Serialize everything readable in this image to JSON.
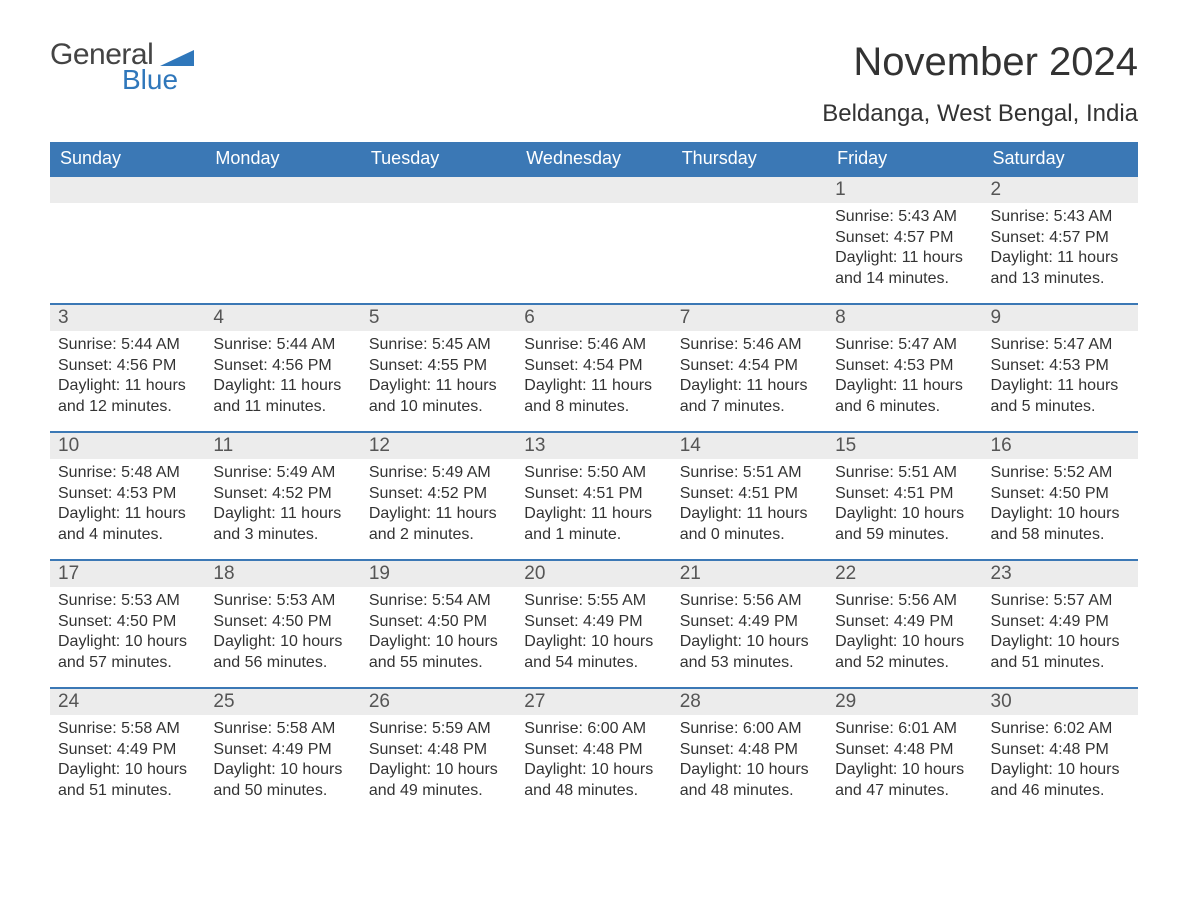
{
  "brand": {
    "general": "General",
    "blue": "Blue"
  },
  "title": "November 2024",
  "location": "Beldanga, West Bengal, India",
  "colors": {
    "header_bg": "#3b78b5",
    "header_text": "#ffffff",
    "cell_border": "#3b78b5",
    "daynum_bg": "#ececec",
    "daynum_text": "#555555",
    "body_text": "#333333",
    "brand_blue": "#2f77bb",
    "page_bg": "#ffffff"
  },
  "weekdays": [
    "Sunday",
    "Monday",
    "Tuesday",
    "Wednesday",
    "Thursday",
    "Friday",
    "Saturday"
  ],
  "first_weekday_index": 5,
  "days": [
    {
      "n": 1,
      "sunrise": "5:43 AM",
      "sunset": "4:57 PM",
      "daylight": "11 hours and 14 minutes."
    },
    {
      "n": 2,
      "sunrise": "5:43 AM",
      "sunset": "4:57 PM",
      "daylight": "11 hours and 13 minutes."
    },
    {
      "n": 3,
      "sunrise": "5:44 AM",
      "sunset": "4:56 PM",
      "daylight": "11 hours and 12 minutes."
    },
    {
      "n": 4,
      "sunrise": "5:44 AM",
      "sunset": "4:56 PM",
      "daylight": "11 hours and 11 minutes."
    },
    {
      "n": 5,
      "sunrise": "5:45 AM",
      "sunset": "4:55 PM",
      "daylight": "11 hours and 10 minutes."
    },
    {
      "n": 6,
      "sunrise": "5:46 AM",
      "sunset": "4:54 PM",
      "daylight": "11 hours and 8 minutes."
    },
    {
      "n": 7,
      "sunrise": "5:46 AM",
      "sunset": "4:54 PM",
      "daylight": "11 hours and 7 minutes."
    },
    {
      "n": 8,
      "sunrise": "5:47 AM",
      "sunset": "4:53 PM",
      "daylight": "11 hours and 6 minutes."
    },
    {
      "n": 9,
      "sunrise": "5:47 AM",
      "sunset": "4:53 PM",
      "daylight": "11 hours and 5 minutes."
    },
    {
      "n": 10,
      "sunrise": "5:48 AM",
      "sunset": "4:53 PM",
      "daylight": "11 hours and 4 minutes."
    },
    {
      "n": 11,
      "sunrise": "5:49 AM",
      "sunset": "4:52 PM",
      "daylight": "11 hours and 3 minutes."
    },
    {
      "n": 12,
      "sunrise": "5:49 AM",
      "sunset": "4:52 PM",
      "daylight": "11 hours and 2 minutes."
    },
    {
      "n": 13,
      "sunrise": "5:50 AM",
      "sunset": "4:51 PM",
      "daylight": "11 hours and 1 minute."
    },
    {
      "n": 14,
      "sunrise": "5:51 AM",
      "sunset": "4:51 PM",
      "daylight": "11 hours and 0 minutes."
    },
    {
      "n": 15,
      "sunrise": "5:51 AM",
      "sunset": "4:51 PM",
      "daylight": "10 hours and 59 minutes."
    },
    {
      "n": 16,
      "sunrise": "5:52 AM",
      "sunset": "4:50 PM",
      "daylight": "10 hours and 58 minutes."
    },
    {
      "n": 17,
      "sunrise": "5:53 AM",
      "sunset": "4:50 PM",
      "daylight": "10 hours and 57 minutes."
    },
    {
      "n": 18,
      "sunrise": "5:53 AM",
      "sunset": "4:50 PM",
      "daylight": "10 hours and 56 minutes."
    },
    {
      "n": 19,
      "sunrise": "5:54 AM",
      "sunset": "4:50 PM",
      "daylight": "10 hours and 55 minutes."
    },
    {
      "n": 20,
      "sunrise": "5:55 AM",
      "sunset": "4:49 PM",
      "daylight": "10 hours and 54 minutes."
    },
    {
      "n": 21,
      "sunrise": "5:56 AM",
      "sunset": "4:49 PM",
      "daylight": "10 hours and 53 minutes."
    },
    {
      "n": 22,
      "sunrise": "5:56 AM",
      "sunset": "4:49 PM",
      "daylight": "10 hours and 52 minutes."
    },
    {
      "n": 23,
      "sunrise": "5:57 AM",
      "sunset": "4:49 PM",
      "daylight": "10 hours and 51 minutes."
    },
    {
      "n": 24,
      "sunrise": "5:58 AM",
      "sunset": "4:49 PM",
      "daylight": "10 hours and 51 minutes."
    },
    {
      "n": 25,
      "sunrise": "5:58 AM",
      "sunset": "4:49 PM",
      "daylight": "10 hours and 50 minutes."
    },
    {
      "n": 26,
      "sunrise": "5:59 AM",
      "sunset": "4:48 PM",
      "daylight": "10 hours and 49 minutes."
    },
    {
      "n": 27,
      "sunrise": "6:00 AM",
      "sunset": "4:48 PM",
      "daylight": "10 hours and 48 minutes."
    },
    {
      "n": 28,
      "sunrise": "6:00 AM",
      "sunset": "4:48 PM",
      "daylight": "10 hours and 48 minutes."
    },
    {
      "n": 29,
      "sunrise": "6:01 AM",
      "sunset": "4:48 PM",
      "daylight": "10 hours and 47 minutes."
    },
    {
      "n": 30,
      "sunrise": "6:02 AM",
      "sunset": "4:48 PM",
      "daylight": "10 hours and 46 minutes."
    }
  ],
  "labels": {
    "sunrise": "Sunrise:",
    "sunset": "Sunset:",
    "daylight": "Daylight:"
  }
}
